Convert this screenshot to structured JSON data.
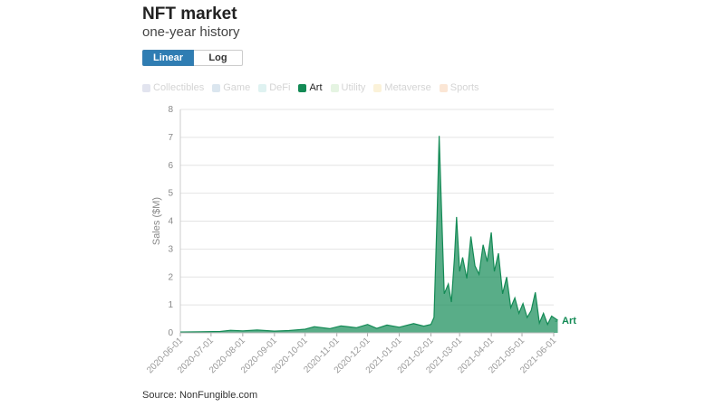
{
  "header": {
    "title": "NFT market",
    "subtitle": "one-year history"
  },
  "scale_toggle": {
    "linear_label": "Linear",
    "log_label": "Log",
    "selected": "Linear"
  },
  "legend": [
    {
      "label": "Collectibles",
      "color": "#9aa0c8",
      "active": false
    },
    {
      "label": "Game",
      "color": "#7fa7c9",
      "active": false
    },
    {
      "label": "DeFi",
      "color": "#8fd1cf",
      "active": false
    },
    {
      "label": "Art",
      "color": "#138a55",
      "active": true
    },
    {
      "label": "Utility",
      "color": "#a5d99a",
      "active": false
    },
    {
      "label": "Metaverse",
      "color": "#f2d27a",
      "active": false
    },
    {
      "label": "Sports",
      "color": "#f2a96b",
      "active": false
    }
  ],
  "source": "Source: NonFungible.com",
  "chart_data": {
    "type": "area",
    "title": "NFT market",
    "subtitle": "one-year history",
    "xlabel": "",
    "ylabel": "Sales ($M)",
    "ylim": [
      0,
      8
    ],
    "yticks": [
      "0",
      "1",
      "2",
      "3",
      "4",
      "5",
      "6",
      "7",
      "8"
    ],
    "xticks": [
      "2020-06-01",
      "2020-07-01",
      "2020-08-01",
      "2020-09-01",
      "2020-10-01",
      "2020-11-01",
      "2020-12-01",
      "2021-01-01",
      "2021-02-01",
      "2021-03-01",
      "2021-04-01",
      "2021-05-01",
      "2021-06-01"
    ],
    "grid": true,
    "series": [
      {
        "name": "Art",
        "color": "#138a55",
        "points": [
          [
            "2020-06-01",
            0.03
          ],
          [
            "2020-06-20",
            0.04
          ],
          [
            "2020-07-10",
            0.05
          ],
          [
            "2020-07-20",
            0.09
          ],
          [
            "2020-08-01",
            0.07
          ],
          [
            "2020-08-15",
            0.1
          ],
          [
            "2020-09-01",
            0.06
          ],
          [
            "2020-09-15",
            0.08
          ],
          [
            "2020-10-01",
            0.13
          ],
          [
            "2020-10-10",
            0.22
          ],
          [
            "2020-10-25",
            0.15
          ],
          [
            "2020-11-05",
            0.25
          ],
          [
            "2020-11-20",
            0.18
          ],
          [
            "2020-12-01",
            0.3
          ],
          [
            "2020-12-10",
            0.16
          ],
          [
            "2020-12-20",
            0.28
          ],
          [
            "2021-01-01",
            0.2
          ],
          [
            "2021-01-15",
            0.33
          ],
          [
            "2021-01-25",
            0.24
          ],
          [
            "2021-02-01",
            0.3
          ],
          [
            "2021-02-04",
            0.55
          ],
          [
            "2021-02-07",
            4.2
          ],
          [
            "2021-02-09",
            7.05
          ],
          [
            "2021-02-11",
            4.8
          ],
          [
            "2021-02-14",
            1.4
          ],
          [
            "2021-02-18",
            1.75
          ],
          [
            "2021-02-21",
            1.1
          ],
          [
            "2021-02-24",
            2.7
          ],
          [
            "2021-02-26",
            4.15
          ],
          [
            "2021-03-01",
            2.2
          ],
          [
            "2021-03-04",
            2.7
          ],
          [
            "2021-03-08",
            1.95
          ],
          [
            "2021-03-12",
            3.45
          ],
          [
            "2021-03-16",
            2.4
          ],
          [
            "2021-03-20",
            2.1
          ],
          [
            "2021-03-24",
            3.15
          ],
          [
            "2021-03-28",
            2.55
          ],
          [
            "2021-04-01",
            3.6
          ],
          [
            "2021-04-04",
            2.2
          ],
          [
            "2021-04-08",
            2.85
          ],
          [
            "2021-04-12",
            1.4
          ],
          [
            "2021-04-16",
            2.0
          ],
          [
            "2021-04-20",
            0.9
          ],
          [
            "2021-04-24",
            1.25
          ],
          [
            "2021-04-28",
            0.7
          ],
          [
            "2021-05-02",
            1.05
          ],
          [
            "2021-05-06",
            0.55
          ],
          [
            "2021-05-10",
            0.8
          ],
          [
            "2021-05-14",
            1.45
          ],
          [
            "2021-05-18",
            0.35
          ],
          [
            "2021-05-22",
            0.7
          ],
          [
            "2021-05-26",
            0.3
          ],
          [
            "2021-05-30",
            0.6
          ],
          [
            "2021-06-05",
            0.45
          ]
        ]
      }
    ],
    "end_label": "Art"
  }
}
